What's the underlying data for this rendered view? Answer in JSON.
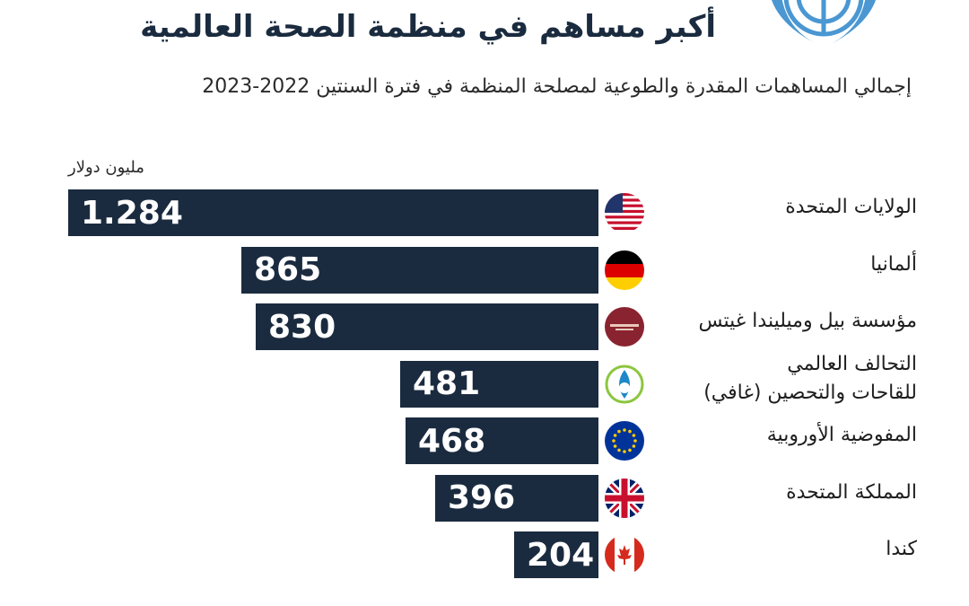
{
  "title": "أكبر مساهم في منظمة الصحة العالمية",
  "subtitle": "إجمالي المساهمات المقدرة والطوعية لمصلحة المنظمة في فترة السنتين 2022-2023",
  "colors": {
    "bar": "#1b2b3f",
    "logo": "#4a97d2"
  },
  "icons": {
    "logo": "un-emblem-icon"
  },
  "chart_data": {
    "type": "bar",
    "orientation": "horizontal",
    "unit_label": "مليون دولار",
    "max_value": 1284,
    "categories": [
      "الولايات المتحدة",
      "ألمانيا",
      "مؤسسة بيل وميليندا غيتس",
      "التحالف العالمي\nللقاحات والتحصين (غافي)",
      "المفوضية الأوروبية",
      "المملكة المتحدة",
      "كندا"
    ],
    "values": [
      1284,
      865,
      830,
      481,
      468,
      396,
      204
    ],
    "value_labels": [
      "1.284",
      "865",
      "830",
      "481",
      "468",
      "396",
      "204"
    ],
    "icons": [
      "us-flag-icon",
      "germany-flag-icon",
      "gates-foundation-icon",
      "gavi-icon",
      "eu-flag-icon",
      "uk-flag-icon",
      "canada-flag-icon"
    ]
  }
}
